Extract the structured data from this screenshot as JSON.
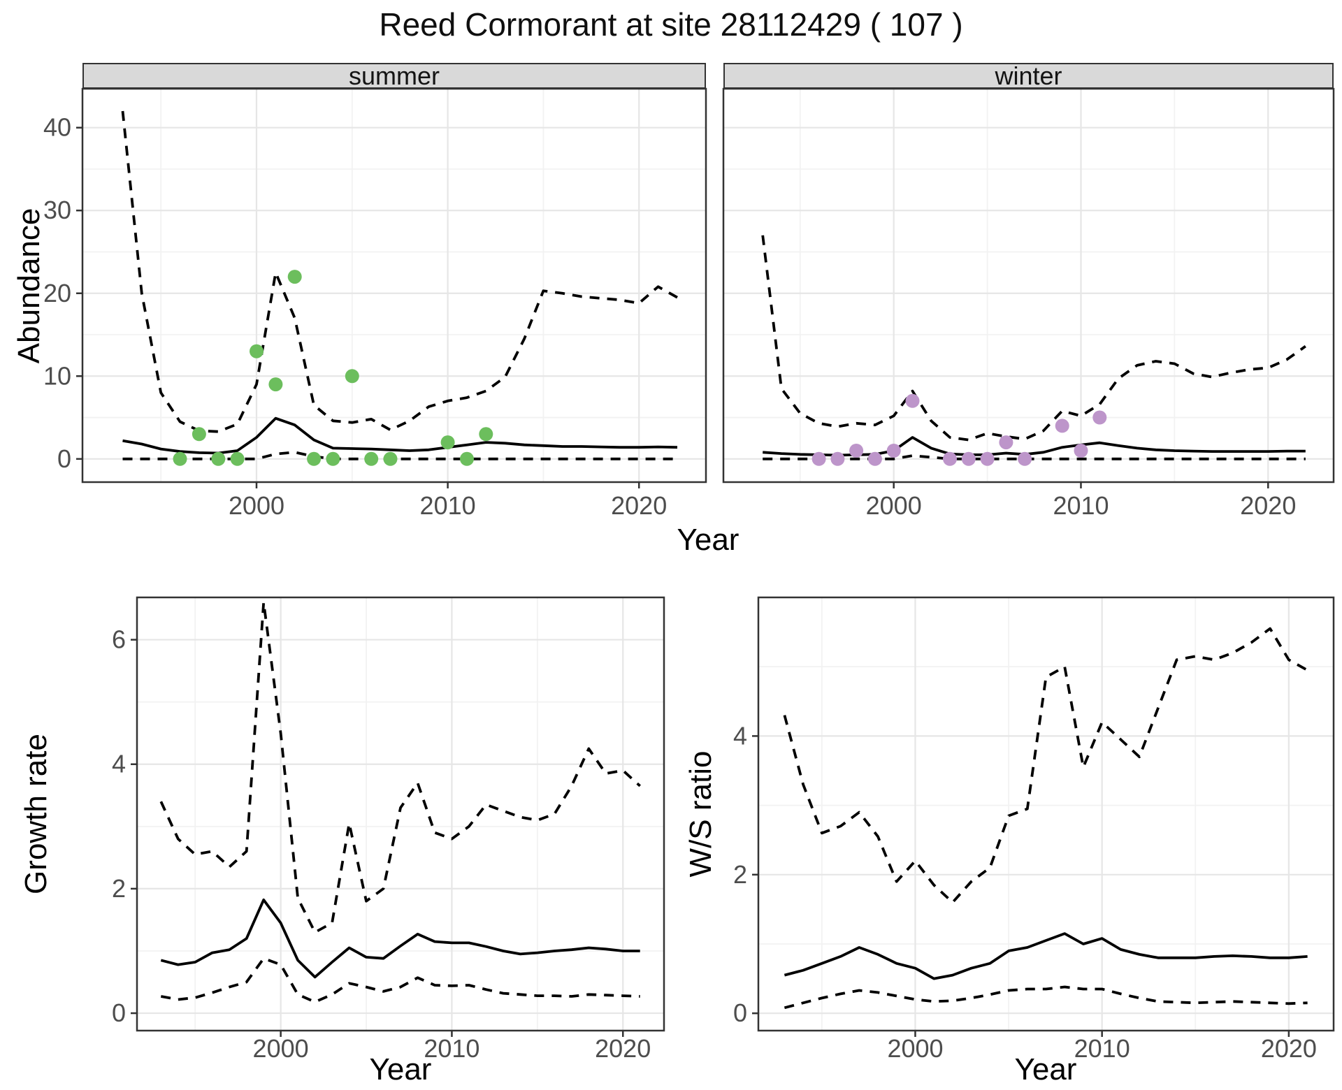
{
  "title": "Reed Cormorant at site 28112429 ( 107 )",
  "colors": {
    "observed_summer": "#6cbe5d",
    "observed_winter": "#bd95ca",
    "fit_line": "#000000",
    "strip_bg": "#d9d9d9",
    "panel_border": "#333333",
    "grid_major": "#e6e6e6",
    "grid_minor": "#f2f2f2",
    "tick_text": "#4d4d4d"
  },
  "chart_data": [
    {
      "id": "abundance-summer",
      "type": "line",
      "facet_label": "summer",
      "xlabel": "Year",
      "ylabel": "Abundance",
      "xlim": [
        1990.9,
        2023.5
      ],
      "ylim": [
        -2.8,
        44.7
      ],
      "xticks": [
        2000,
        2010,
        2020
      ],
      "yticks": [
        0,
        10,
        20,
        30,
        40
      ],
      "xminor": [
        1995,
        2005,
        2015
      ],
      "yminor": [
        5,
        15,
        25,
        35
      ],
      "x": [
        1993,
        1994,
        1995,
        1996,
        1997,
        1998,
        1999,
        2000,
        2001,
        2002,
        2003,
        2004,
        2005,
        2006,
        2007,
        2008,
        2009,
        2010,
        2011,
        2012,
        2013,
        2014,
        2015,
        2016,
        2017,
        2018,
        2019,
        2020,
        2021,
        2022
      ],
      "series": [
        {
          "name": "upper-95ci",
          "style": "dashed",
          "values": [
            42,
            20,
            8,
            4.5,
            3.4,
            3.3,
            4.2,
            9,
            22.5,
            17,
            6.5,
            4.6,
            4.4,
            4.8,
            3.5,
            4.6,
            6.3,
            7.0,
            7.4,
            8.2,
            9.9,
            14.5,
            20.3,
            20.0,
            19.6,
            19.4,
            19.2,
            18.8,
            20.8,
            19.5
          ]
        },
        {
          "name": "lower-95ci",
          "style": "dashed",
          "values": [
            0,
            0,
            0,
            0,
            0,
            0,
            0,
            0,
            0.6,
            0.8,
            0.3,
            0,
            0,
            0,
            0,
            0,
            0,
            0,
            0,
            0,
            0,
            0,
            0,
            0,
            0,
            0,
            0,
            0,
            0,
            0
          ]
        },
        {
          "name": "median-fit",
          "style": "solid",
          "values": [
            2.2,
            1.8,
            1.2,
            0.9,
            0.75,
            0.7,
            1.0,
            2.6,
            4.9,
            4.1,
            2.3,
            1.3,
            1.25,
            1.2,
            1.1,
            1.0,
            1.1,
            1.4,
            1.7,
            2.0,
            1.9,
            1.7,
            1.6,
            1.5,
            1.5,
            1.45,
            1.4,
            1.4,
            1.45,
            1.4
          ]
        }
      ],
      "points": {
        "name": "observed-counts-summer",
        "color": "#6cbe5d",
        "x": [
          1996,
          1997,
          1998,
          1999,
          2000,
          2001,
          2002,
          2003,
          2004,
          2005,
          2006,
          2007,
          2010,
          2011,
          2012
        ],
        "y": [
          0,
          3,
          0,
          0,
          13,
          9,
          22,
          0,
          0,
          10,
          0,
          0,
          2,
          0,
          3
        ]
      }
    },
    {
      "id": "abundance-winter",
      "type": "line",
      "facet_label": "winter",
      "xlabel": "Year",
      "ylabel": "Abundance",
      "xlim": [
        1990.9,
        2023.5
      ],
      "ylim": [
        -2.8,
        44.7
      ],
      "xticks": [
        2000,
        2010,
        2020
      ],
      "yticks": [
        0,
        10,
        20,
        30,
        40
      ],
      "xminor": [
        1995,
        2005,
        2015
      ],
      "yminor": [
        5,
        15,
        25,
        35
      ],
      "x": [
        1993,
        1994,
        1995,
        1996,
        1997,
        1998,
        1999,
        2000,
        2001,
        2002,
        2003,
        2004,
        2005,
        2006,
        2007,
        2008,
        2009,
        2010,
        2011,
        2012,
        2013,
        2014,
        2015,
        2016,
        2017,
        2018,
        2019,
        2020,
        2021,
        2022
      ],
      "series": [
        {
          "name": "upper-95ci",
          "style": "dashed",
          "values": [
            27,
            8.5,
            5.5,
            4.3,
            3.9,
            4.3,
            4.1,
            5.2,
            8.2,
            4.6,
            2.6,
            2.3,
            3.1,
            2.7,
            2.4,
            3.4,
            5.8,
            5.2,
            6.6,
            9.7,
            11.3,
            11.8,
            11.5,
            10.3,
            9.9,
            10.4,
            10.8,
            11.0,
            12.0,
            13.6
          ]
        },
        {
          "name": "lower-95ci",
          "style": "dashed",
          "values": [
            0,
            0,
            0,
            0,
            0,
            0,
            0,
            0,
            0.4,
            0.2,
            0,
            0,
            0,
            0,
            0,
            0,
            0,
            0,
            0,
            0,
            0,
            0,
            0,
            0,
            0,
            0,
            0,
            0,
            0,
            0
          ]
        },
        {
          "name": "median-fit",
          "style": "solid",
          "values": [
            0.8,
            0.65,
            0.55,
            0.5,
            0.45,
            0.5,
            0.55,
            1.0,
            2.6,
            1.3,
            0.6,
            0.5,
            0.5,
            0.7,
            0.55,
            0.8,
            1.4,
            1.7,
            1.95,
            1.6,
            1.3,
            1.1,
            1.0,
            0.95,
            0.9,
            0.9,
            0.9,
            0.9,
            0.95,
            0.95
          ]
        }
      ],
      "points": {
        "name": "observed-counts-winter",
        "color": "#bd95ca",
        "x": [
          1996,
          1997,
          1998,
          1999,
          2000,
          2001,
          2003,
          2004,
          2005,
          2006,
          2007,
          2009,
          2010,
          2011
        ],
        "y": [
          0,
          0,
          1,
          0,
          1,
          7,
          0,
          0,
          0,
          2,
          0,
          4,
          1,
          5
        ]
      }
    },
    {
      "id": "growth-rate",
      "type": "line",
      "facet_label": "",
      "xlabel": "Year",
      "ylabel": "Growth rate",
      "xlim": [
        1991.6,
        2022.4
      ],
      "ylim": [
        -0.28,
        6.68
      ],
      "xticks": [
        2000,
        2010,
        2020
      ],
      "yticks": [
        0,
        2,
        4,
        6
      ],
      "xminor": [
        1995,
        2005,
        2015
      ],
      "yminor": [
        1,
        3,
        5
      ],
      "x": [
        1993,
        1994,
        1995,
        1996,
        1997,
        1998,
        1999,
        2000,
        2001,
        2002,
        2003,
        2004,
        2005,
        2006,
        2007,
        2008,
        2009,
        2010,
        2011,
        2012,
        2013,
        2014,
        2015,
        2016,
        2017,
        2018,
        2019,
        2020,
        2021
      ],
      "series": [
        {
          "name": "upper-95ci",
          "style": "dashed",
          "values": [
            3.4,
            2.8,
            2.55,
            2.6,
            2.35,
            2.6,
            6.6,
            4.5,
            1.85,
            1.3,
            1.45,
            3.05,
            1.8,
            2.0,
            3.3,
            3.7,
            2.9,
            2.8,
            3.0,
            3.35,
            3.25,
            3.15,
            3.1,
            3.2,
            3.65,
            4.25,
            3.85,
            3.9,
            3.65
          ]
        },
        {
          "name": "lower-95ci",
          "style": "dashed",
          "values": [
            0.27,
            0.22,
            0.25,
            0.33,
            0.42,
            0.5,
            0.88,
            0.78,
            0.3,
            0.18,
            0.3,
            0.48,
            0.42,
            0.35,
            0.42,
            0.57,
            0.45,
            0.44,
            0.45,
            0.38,
            0.32,
            0.3,
            0.28,
            0.28,
            0.27,
            0.3,
            0.29,
            0.28,
            0.27
          ]
        },
        {
          "name": "median-fit",
          "style": "solid",
          "values": [
            0.85,
            0.78,
            0.82,
            0.97,
            1.02,
            1.2,
            1.82,
            1.45,
            0.85,
            0.58,
            0.82,
            1.05,
            0.9,
            0.88,
            1.08,
            1.27,
            1.15,
            1.13,
            1.13,
            1.07,
            1.0,
            0.95,
            0.97,
            1.0,
            1.02,
            1.05,
            1.03,
            1.0,
            1.0
          ]
        }
      ],
      "points": null
    },
    {
      "id": "ws-ratio",
      "type": "line",
      "facet_label": "",
      "xlabel": "Year",
      "ylabel": "W/S ratio",
      "xlim": [
        1991.6,
        2022.4
      ],
      "ylim": [
        -0.25,
        6.0
      ],
      "xticks": [
        2000,
        2010,
        2020
      ],
      "yticks": [
        0,
        2,
        4
      ],
      "xminor": [
        1995,
        2005,
        2015
      ],
      "yminor": [
        1,
        3,
        5
      ],
      "x": [
        1993,
        1994,
        1995,
        1996,
        1997,
        1998,
        1999,
        2000,
        2001,
        2002,
        2003,
        2004,
        2005,
        2006,
        2007,
        2008,
        2009,
        2010,
        2011,
        2012,
        2013,
        2014,
        2015,
        2016,
        2017,
        2018,
        2019,
        2020,
        2021
      ],
      "series": [
        {
          "name": "upper-95ci",
          "style": "dashed",
          "values": [
            4.3,
            3.3,
            2.6,
            2.7,
            2.9,
            2.55,
            1.9,
            2.2,
            1.85,
            1.6,
            1.9,
            2.1,
            2.85,
            2.95,
            4.85,
            5.0,
            3.55,
            4.2,
            3.95,
            3.7,
            4.4,
            5.1,
            5.15,
            5.1,
            5.2,
            5.35,
            5.55,
            5.1,
            4.95
          ]
        },
        {
          "name": "lower-95ci",
          "style": "dashed",
          "values": [
            0.08,
            0.15,
            0.22,
            0.28,
            0.33,
            0.3,
            0.25,
            0.2,
            0.17,
            0.18,
            0.22,
            0.27,
            0.33,
            0.35,
            0.35,
            0.38,
            0.35,
            0.35,
            0.28,
            0.22,
            0.17,
            0.16,
            0.15,
            0.16,
            0.17,
            0.16,
            0.15,
            0.14,
            0.15
          ]
        },
        {
          "name": "median-fit",
          "style": "solid",
          "values": [
            0.55,
            0.62,
            0.72,
            0.82,
            0.95,
            0.85,
            0.72,
            0.65,
            0.5,
            0.55,
            0.65,
            0.72,
            0.9,
            0.95,
            1.05,
            1.15,
            1.0,
            1.08,
            0.92,
            0.85,
            0.8,
            0.8,
            0.8,
            0.82,
            0.83,
            0.82,
            0.8,
            0.8,
            0.82
          ]
        }
      ],
      "points": null
    }
  ]
}
